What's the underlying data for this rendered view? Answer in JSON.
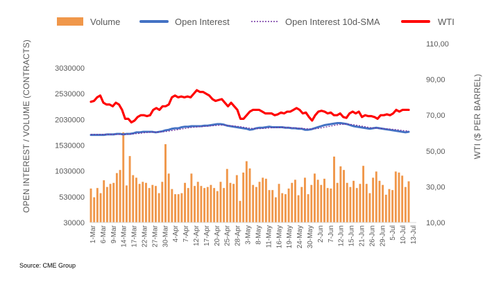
{
  "chart_data": {
    "type": "bar+line",
    "legend": [
      "Volume",
      "Open Interest",
      "Open Interest 10d-SMA",
      "WTI"
    ],
    "legend_position": "top",
    "left_axis": {
      "title": "OPEN INTEREST / VOLUME (CONTRACTS)",
      "min": 30000,
      "max": 3030000,
      "ticks": [
        "30000",
        "530000",
        "1030000",
        "1530000",
        "2030000",
        "2530000",
        "3030000"
      ]
    },
    "right_axis": {
      "title": "WTI ($ PER BARREL)",
      "min": 10,
      "max": 110,
      "ticks": [
        "10,00",
        "30,00",
        "50,00",
        "70,00",
        "90,00",
        "110,00"
      ]
    },
    "x_tick_labels": [
      "1-Mar",
      "6-Mar",
      "9-Mar",
      "14-Mar",
      "17-Mar",
      "22-Mar",
      "27-Mar",
      "30-Mar",
      "4-Apr",
      "7-Apr",
      "12-Apr",
      "17-Apr",
      "20-Apr",
      "25-Apr",
      "28-Apr",
      "3-May",
      "8-May",
      "11-May",
      "16-May",
      "19-May",
      "24-May",
      "30-May",
      "2-Jun",
      "7-Jun",
      "12-Jun",
      "15-Jun",
      "21-Jun",
      "26-Jun",
      "29-Jun",
      "5-Jul",
      "10-Jul",
      "13-Jul"
    ],
    "volume": [
      690000,
      520000,
      700000,
      600000,
      850000,
      720000,
      780000,
      800000,
      990000,
      1050000,
      1780000,
      750000,
      1320000,
      950000,
      900000,
      780000,
      820000,
      800000,
      700000,
      760000,
      740000,
      600000,
      820000,
      1550000,
      980000,
      680000,
      580000,
      580000,
      600000,
      800000,
      700000,
      980000,
      740000,
      820000,
      740000,
      700000,
      720000,
      760000,
      700000,
      640000,
      820000,
      700000,
      1070000,
      800000,
      780000,
      950000,
      450000,
      1000000,
      1220000,
      1080000,
      760000,
      720000,
      820000,
      900000,
      880000,
      660000,
      660000,
      520000,
      780000,
      600000,
      580000,
      690000,
      800000,
      860000,
      560000,
      720000,
      900000,
      580000,
      760000,
      980000,
      860000,
      760000,
      880000,
      700000,
      690000,
      1310000,
      800000,
      1120000,
      1050000,
      800000,
      720000,
      840000,
      700000,
      780000,
      1130000,
      780000,
      600000,
      900000,
      1020000,
      840000,
      760000,
      570000,
      680000,
      660000,
      1020000,
      1000000,
      940000,
      720000,
      830000
    ],
    "open_interest": [
      1730000,
      1730000,
      1730000,
      1730000,
      1730000,
      1740000,
      1740000,
      1740000,
      1750000,
      1750000,
      1740000,
      1750000,
      1750000,
      1760000,
      1780000,
      1780000,
      1790000,
      1790000,
      1790000,
      1790000,
      1780000,
      1790000,
      1800000,
      1820000,
      1830000,
      1850000,
      1860000,
      1860000,
      1880000,
      1890000,
      1890000,
      1900000,
      1900000,
      1900000,
      1900000,
      1910000,
      1910000,
      1920000,
      1930000,
      1940000,
      1940000,
      1930000,
      1910000,
      1900000,
      1890000,
      1880000,
      1870000,
      1860000,
      1850000,
      1830000,
      1840000,
      1860000,
      1870000,
      1870000,
      1880000,
      1890000,
      1880000,
      1880000,
      1880000,
      1880000,
      1870000,
      1870000,
      1860000,
      1860000,
      1850000,
      1850000,
      1830000,
      1830000,
      1840000,
      1860000,
      1880000,
      1900000,
      1920000,
      1930000,
      1940000,
      1950000,
      1960000,
      1960000,
      1950000,
      1940000,
      1920000,
      1900000,
      1890000,
      1880000,
      1870000,
      1860000,
      1850000,
      1860000,
      1870000,
      1860000,
      1850000,
      1840000,
      1830000,
      1820000,
      1810000,
      1800000,
      1790000,
      1780000,
      1790000
    ],
    "open_interest_10d_sma": [
      1740000,
      1740000,
      1740000,
      1740000,
      1740000,
      1740000,
      1740000,
      1740000,
      1740000,
      1740000,
      1740000,
      1740000,
      1745000,
      1750000,
      1755000,
      1760000,
      1770000,
      1775000,
      1780000,
      1785000,
      1785000,
      1785000,
      1790000,
      1795000,
      1805000,
      1815000,
      1825000,
      1835000,
      1845000,
      1855000,
      1865000,
      1875000,
      1880000,
      1885000,
      1890000,
      1895000,
      1900000,
      1905000,
      1910000,
      1915000,
      1920000,
      1920000,
      1915000,
      1910000,
      1905000,
      1898000,
      1890000,
      1880000,
      1870000,
      1860000,
      1855000,
      1852000,
      1852000,
      1855000,
      1860000,
      1865000,
      1870000,
      1872000,
      1875000,
      1876000,
      1874000,
      1872000,
      1870000,
      1866000,
      1862000,
      1858000,
      1852000,
      1848000,
      1846000,
      1848000,
      1855000,
      1865000,
      1878000,
      1890000,
      1902000,
      1915000,
      1926000,
      1934000,
      1938000,
      1940000,
      1936000,
      1928000,
      1918000,
      1906000,
      1895000,
      1884000,
      1873000,
      1866000,
      1862000,
      1858000,
      1854000,
      1850000,
      1846000,
      1840000,
      1834000,
      1826000,
      1818000,
      1810000,
      1806000
    ],
    "wti": [
      77.5,
      78,
      80,
      81,
      77,
      76,
      76,
      75,
      77,
      76,
      73,
      68,
      68,
      66,
      67,
      69,
      70,
      70,
      69.5,
      70,
      73,
      74,
      73,
      75,
      75,
      76,
      80,
      81,
      80,
      80.5,
      80,
      80.5,
      80,
      82,
      84,
      83,
      83,
      82,
      81,
      79,
      78,
      78.5,
      79,
      77,
      75,
      77,
      75,
      73,
      68,
      68,
      70,
      72,
      73,
      73,
      73,
      72,
      71,
      71,
      71,
      70,
      70.5,
      71.5,
      71,
      72,
      72,
      73,
      74,
      73,
      71,
      71.5,
      69,
      67,
      70,
      72,
      72.5,
      72,
      71,
      71.5,
      70,
      70,
      71,
      69,
      68.5,
      71,
      72,
      71,
      72,
      69,
      70,
      69.5,
      69.5,
      69,
      68,
      70,
      70,
      70.5,
      70,
      71,
      73,
      72,
      73,
      73,
      73
    ],
    "colors": {
      "volume": "#f0974a",
      "open_interest": "#4472c4",
      "open_interest_10d_sma": "#7030a0",
      "wti": "#ff0000"
    },
    "gridlines": false
  },
  "source_note": "Source: CME Group"
}
